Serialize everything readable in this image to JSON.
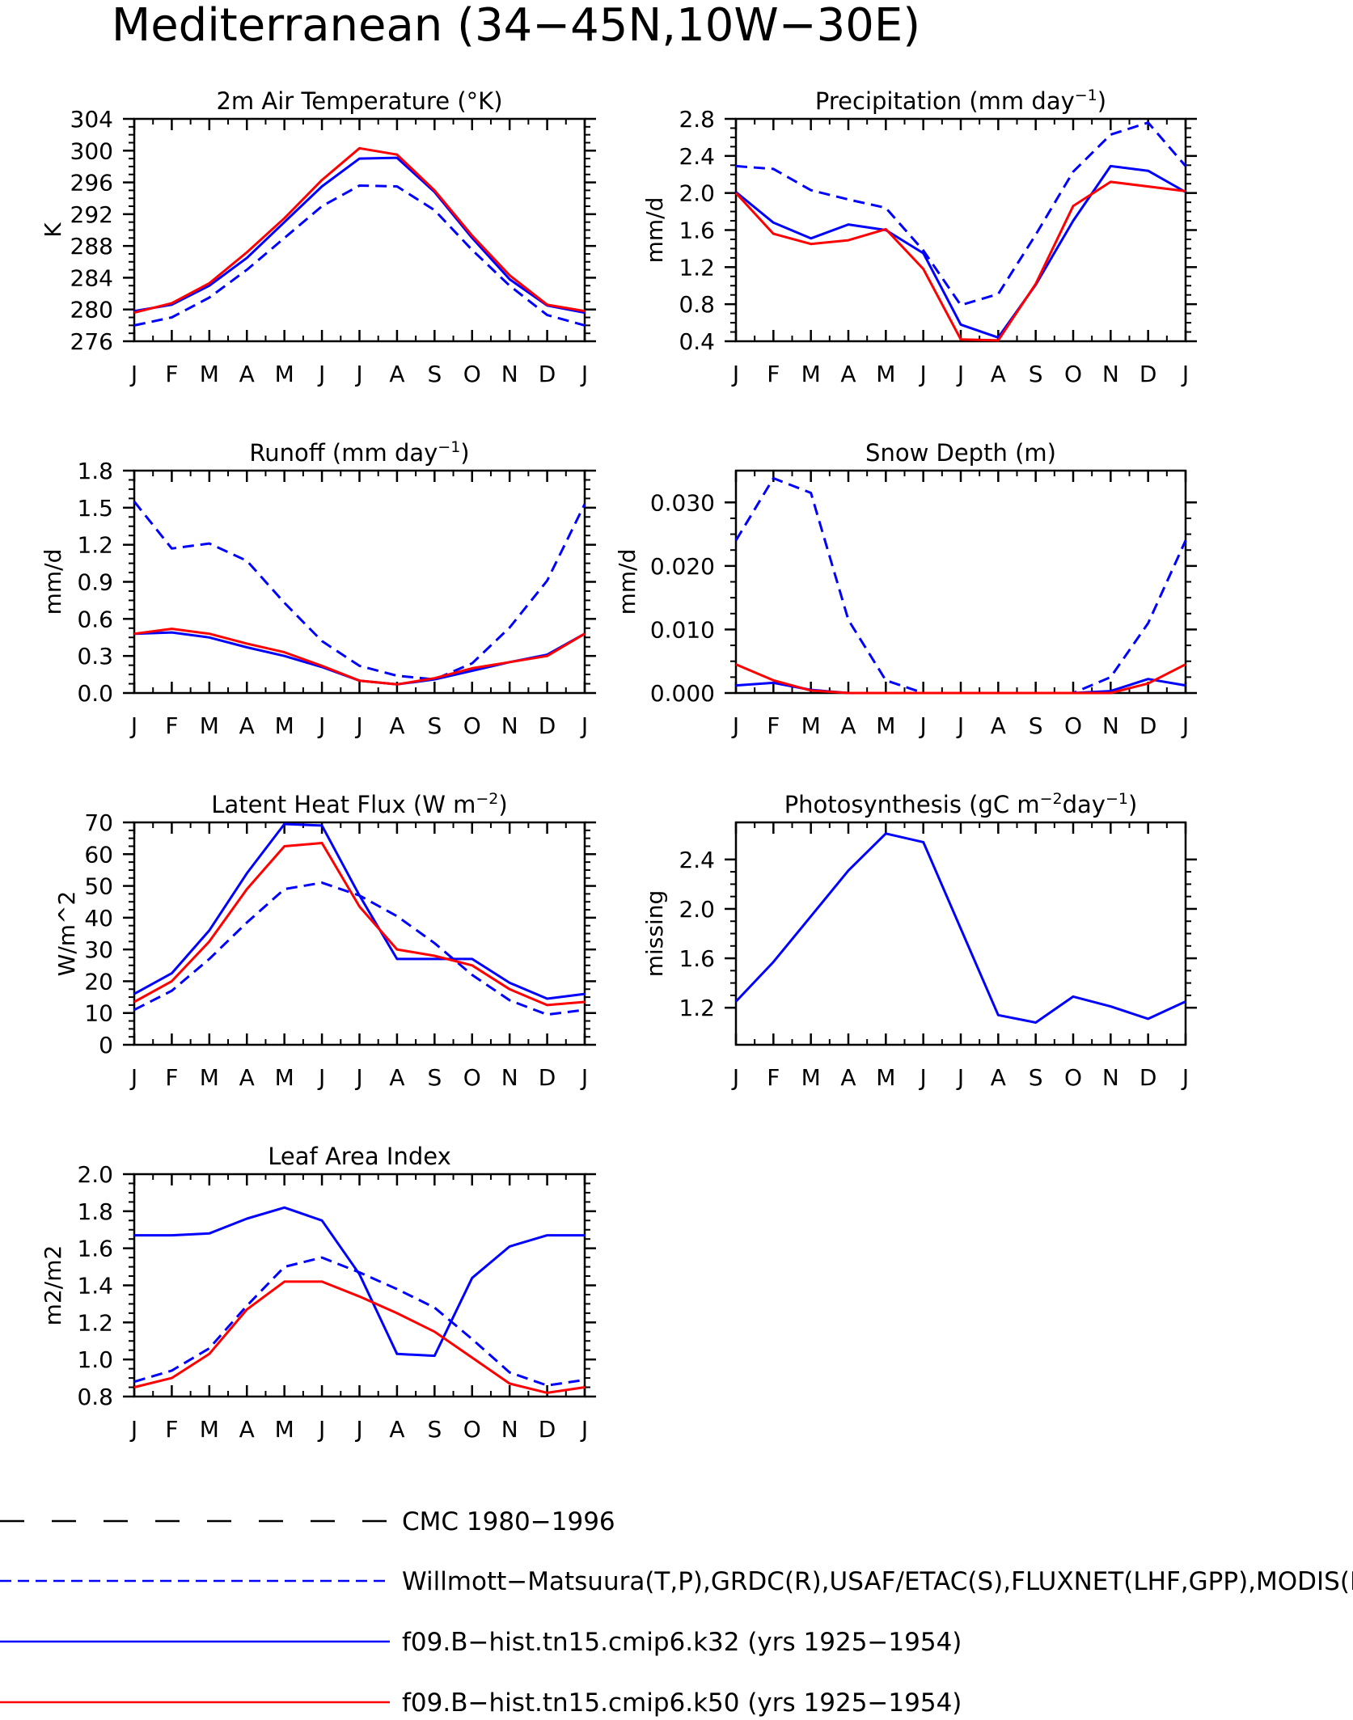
{
  "title": "Mediterranean (34−45N,10W−30E)",
  "months": [
    "J",
    "F",
    "M",
    "A",
    "M",
    "J",
    "J",
    "A",
    "S",
    "O",
    "N",
    "D",
    "J"
  ],
  "chart_data": [
    {
      "type": "line",
      "title": "2m Air Temperature (°K)",
      "title_sup": "",
      "title_tail": "",
      "ylabel": "K",
      "ylim": [
        276,
        304
      ],
      "yticks": [
        276,
        280,
        284,
        288,
        292,
        296,
        300,
        304
      ],
      "ytick_labels": [
        "276",
        "280",
        "284",
        "288",
        "292",
        "296",
        "300",
        "304"
      ],
      "series": [
        {
          "style": "blue-dash",
          "values": [
            278.0,
            279.0,
            281.5,
            285.0,
            289.0,
            293.0,
            295.6,
            295.5,
            292.5,
            287.5,
            283.0,
            279.3,
            278.0
          ]
        },
        {
          "style": "blue-solid",
          "values": [
            279.8,
            280.6,
            283.0,
            286.5,
            291.0,
            295.5,
            299.0,
            299.1,
            294.8,
            289.0,
            283.8,
            280.5,
            279.6
          ]
        },
        {
          "style": "red-solid",
          "values": [
            279.6,
            280.8,
            283.3,
            287.2,
            291.5,
            296.3,
            300.3,
            299.5,
            295.0,
            289.3,
            284.3,
            280.6,
            279.8
          ]
        }
      ]
    },
    {
      "type": "line",
      "title": "Precipitation (mm day",
      "title_sup": "−1",
      "title_tail": ")",
      "ylabel": "mm/d",
      "ylim": [
        0.4,
        2.8
      ],
      "yticks": [
        0.4,
        0.8,
        1.2,
        1.6,
        2.0,
        2.4,
        2.8
      ],
      "ytick_labels": [
        "0.4",
        "0.8",
        "1.2",
        "1.6",
        "2.0",
        "2.4",
        "2.8"
      ],
      "series": [
        {
          "style": "blue-dash",
          "values": [
            2.29,
            2.26,
            2.03,
            1.93,
            1.84,
            1.38,
            0.79,
            0.91,
            1.55,
            2.23,
            2.63,
            2.76,
            2.29
          ]
        },
        {
          "style": "blue-solid",
          "values": [
            2.01,
            1.68,
            1.51,
            1.66,
            1.6,
            1.35,
            0.58,
            0.44,
            1.01,
            1.7,
            2.29,
            2.24,
            2.01
          ]
        },
        {
          "style": "red-solid",
          "values": [
            2.0,
            1.56,
            1.45,
            1.49,
            1.61,
            1.18,
            0.42,
            0.41,
            1.02,
            1.86,
            2.12,
            2.07,
            2.02
          ]
        }
      ]
    },
    {
      "type": "line",
      "title": "Runoff (mm day",
      "title_sup": "−1",
      "title_tail": ")",
      "ylabel": "mm/d",
      "ylim": [
        0.0,
        1.8
      ],
      "yticks": [
        0.0,
        0.3,
        0.6,
        0.9,
        1.2,
        1.5,
        1.8
      ],
      "ytick_labels": [
        "0.0",
        "0.3",
        "0.6",
        "0.9",
        "1.2",
        "1.5",
        "1.8"
      ],
      "series": [
        {
          "style": "blue-dash",
          "values": [
            1.55,
            1.17,
            1.21,
            1.07,
            0.73,
            0.42,
            0.22,
            0.14,
            0.11,
            0.24,
            0.53,
            0.91,
            1.53
          ]
        },
        {
          "style": "blue-solid",
          "values": [
            0.48,
            0.49,
            0.45,
            0.37,
            0.3,
            0.21,
            0.1,
            0.07,
            0.11,
            0.18,
            0.25,
            0.31,
            0.48
          ]
        },
        {
          "style": "red-solid",
          "values": [
            0.48,
            0.52,
            0.48,
            0.4,
            0.33,
            0.22,
            0.1,
            0.07,
            0.12,
            0.2,
            0.25,
            0.3,
            0.48
          ]
        }
      ]
    },
    {
      "type": "line",
      "title": "Snow Depth (m)",
      "title_sup": "",
      "title_tail": "",
      "ylabel": "mm/d",
      "ylim": [
        0.0,
        0.035
      ],
      "yticks": [
        0.0,
        0.01,
        0.02,
        0.03
      ],
      "ytick_labels": [
        "0.000",
        "0.010",
        "0.020",
        "0.030"
      ],
      "series": [
        {
          "style": "blue-dash",
          "values": [
            0.024,
            0.0338,
            0.0315,
            0.0115,
            0.002,
            0.0,
            0.0,
            0.0,
            0.0,
            0.0,
            0.0025,
            0.011,
            0.024
          ]
        },
        {
          "style": "blue-solid",
          "values": [
            0.0012,
            0.0016,
            0.0005,
            0.0,
            0.0,
            0.0,
            0.0,
            0.0,
            0.0,
            0.0,
            0.0003,
            0.0022,
            0.0012
          ]
        },
        {
          "style": "red-solid",
          "values": [
            0.0045,
            0.002,
            0.0004,
            0.0,
            0.0,
            0.0,
            0.0,
            0.0,
            0.0,
            0.0,
            0.0,
            0.0015,
            0.0045
          ]
        }
      ]
    },
    {
      "type": "line",
      "title": "Latent Heat Flux (W m",
      "title_sup": "−2",
      "title_tail": ")",
      "ylabel": "W/m^2",
      "ylim": [
        0,
        70
      ],
      "yticks": [
        0,
        10,
        20,
        30,
        40,
        50,
        60,
        70
      ],
      "ytick_labels": [
        "0",
        "10",
        "20",
        "30",
        "40",
        "50",
        "60",
        "70"
      ],
      "series": [
        {
          "style": "blue-dash",
          "values": [
            11,
            17,
            27,
            38.5,
            49,
            51,
            47,
            40.5,
            32,
            22,
            14,
            9.5,
            11
          ]
        },
        {
          "style": "blue-solid",
          "values": [
            16,
            22.5,
            36,
            54,
            69.5,
            69,
            47,
            27,
            27,
            27,
            19.5,
            14.5,
            16
          ]
        },
        {
          "style": "red-solid",
          "values": [
            13.5,
            20,
            32.5,
            49,
            62.5,
            63.5,
            43.5,
            30,
            28,
            25,
            17.5,
            12.5,
            13.5
          ]
        }
      ]
    },
    {
      "type": "line",
      "title": "Photosynthesis (gC m",
      "title_sup": "−2",
      "title_tail": "day",
      "title_sup2": "−1",
      "title_tail2": ")",
      "ylabel": "missing",
      "ylim": [
        0.9,
        2.7
      ],
      "yticks": [
        1.2,
        1.6,
        2.0,
        2.4
      ],
      "ytick_labels": [
        "1.2",
        "1.6",
        "2.0",
        "2.4"
      ],
      "series": [
        {
          "style": "blue-solid",
          "values": [
            1.25,
            1.57,
            1.94,
            2.31,
            2.61,
            2.54,
            1.84,
            1.14,
            1.08,
            1.29,
            1.21,
            1.11,
            1.25
          ]
        }
      ]
    },
    {
      "type": "line",
      "title": "Leaf Area Index",
      "title_sup": "",
      "title_tail": "",
      "ylabel": "m2/m2",
      "ylim": [
        0.8,
        2.0
      ],
      "yticks": [
        0.8,
        1.0,
        1.2,
        1.4,
        1.6,
        1.8,
        2.0
      ],
      "ytick_labels": [
        "0.8",
        "1.0",
        "1.2",
        "1.4",
        "1.6",
        "1.8",
        "2.0"
      ],
      "series": [
        {
          "style": "blue-dash",
          "values": [
            0.88,
            0.94,
            1.06,
            1.29,
            1.5,
            1.55,
            1.47,
            1.38,
            1.28,
            1.11,
            0.93,
            0.86,
            0.89
          ]
        },
        {
          "style": "blue-solid",
          "values": [
            1.67,
            1.67,
            1.68,
            1.76,
            1.82,
            1.75,
            1.46,
            1.03,
            1.02,
            1.44,
            1.61,
            1.67,
            1.67
          ]
        },
        {
          "style": "red-solid",
          "values": [
            0.85,
            0.9,
            1.03,
            1.27,
            1.42,
            1.42,
            1.34,
            1.25,
            1.15,
            1.01,
            0.87,
            0.82,
            0.85
          ]
        }
      ]
    }
  ],
  "legend": [
    {
      "style": "black-dash",
      "label": "CMC 1980−1996"
    },
    {
      "style": "blue-dash",
      "label": "Willmott−Matsuura(T,P),GRDC(R),USAF/ETAC(S),FLUXNET(LHF,GPP),MODIS(L"
    },
    {
      "style": "blue-solid",
      "label": "f09.B−hist.tn15.cmip6.k32 (yrs 1925−1954)"
    },
    {
      "style": "red-solid",
      "label": "f09.B−hist.tn15.cmip6.k50 (yrs 1925−1954)"
    }
  ],
  "colors": {
    "blue": "#0000ff",
    "red": "#ff0000",
    "black": "#000000"
  }
}
